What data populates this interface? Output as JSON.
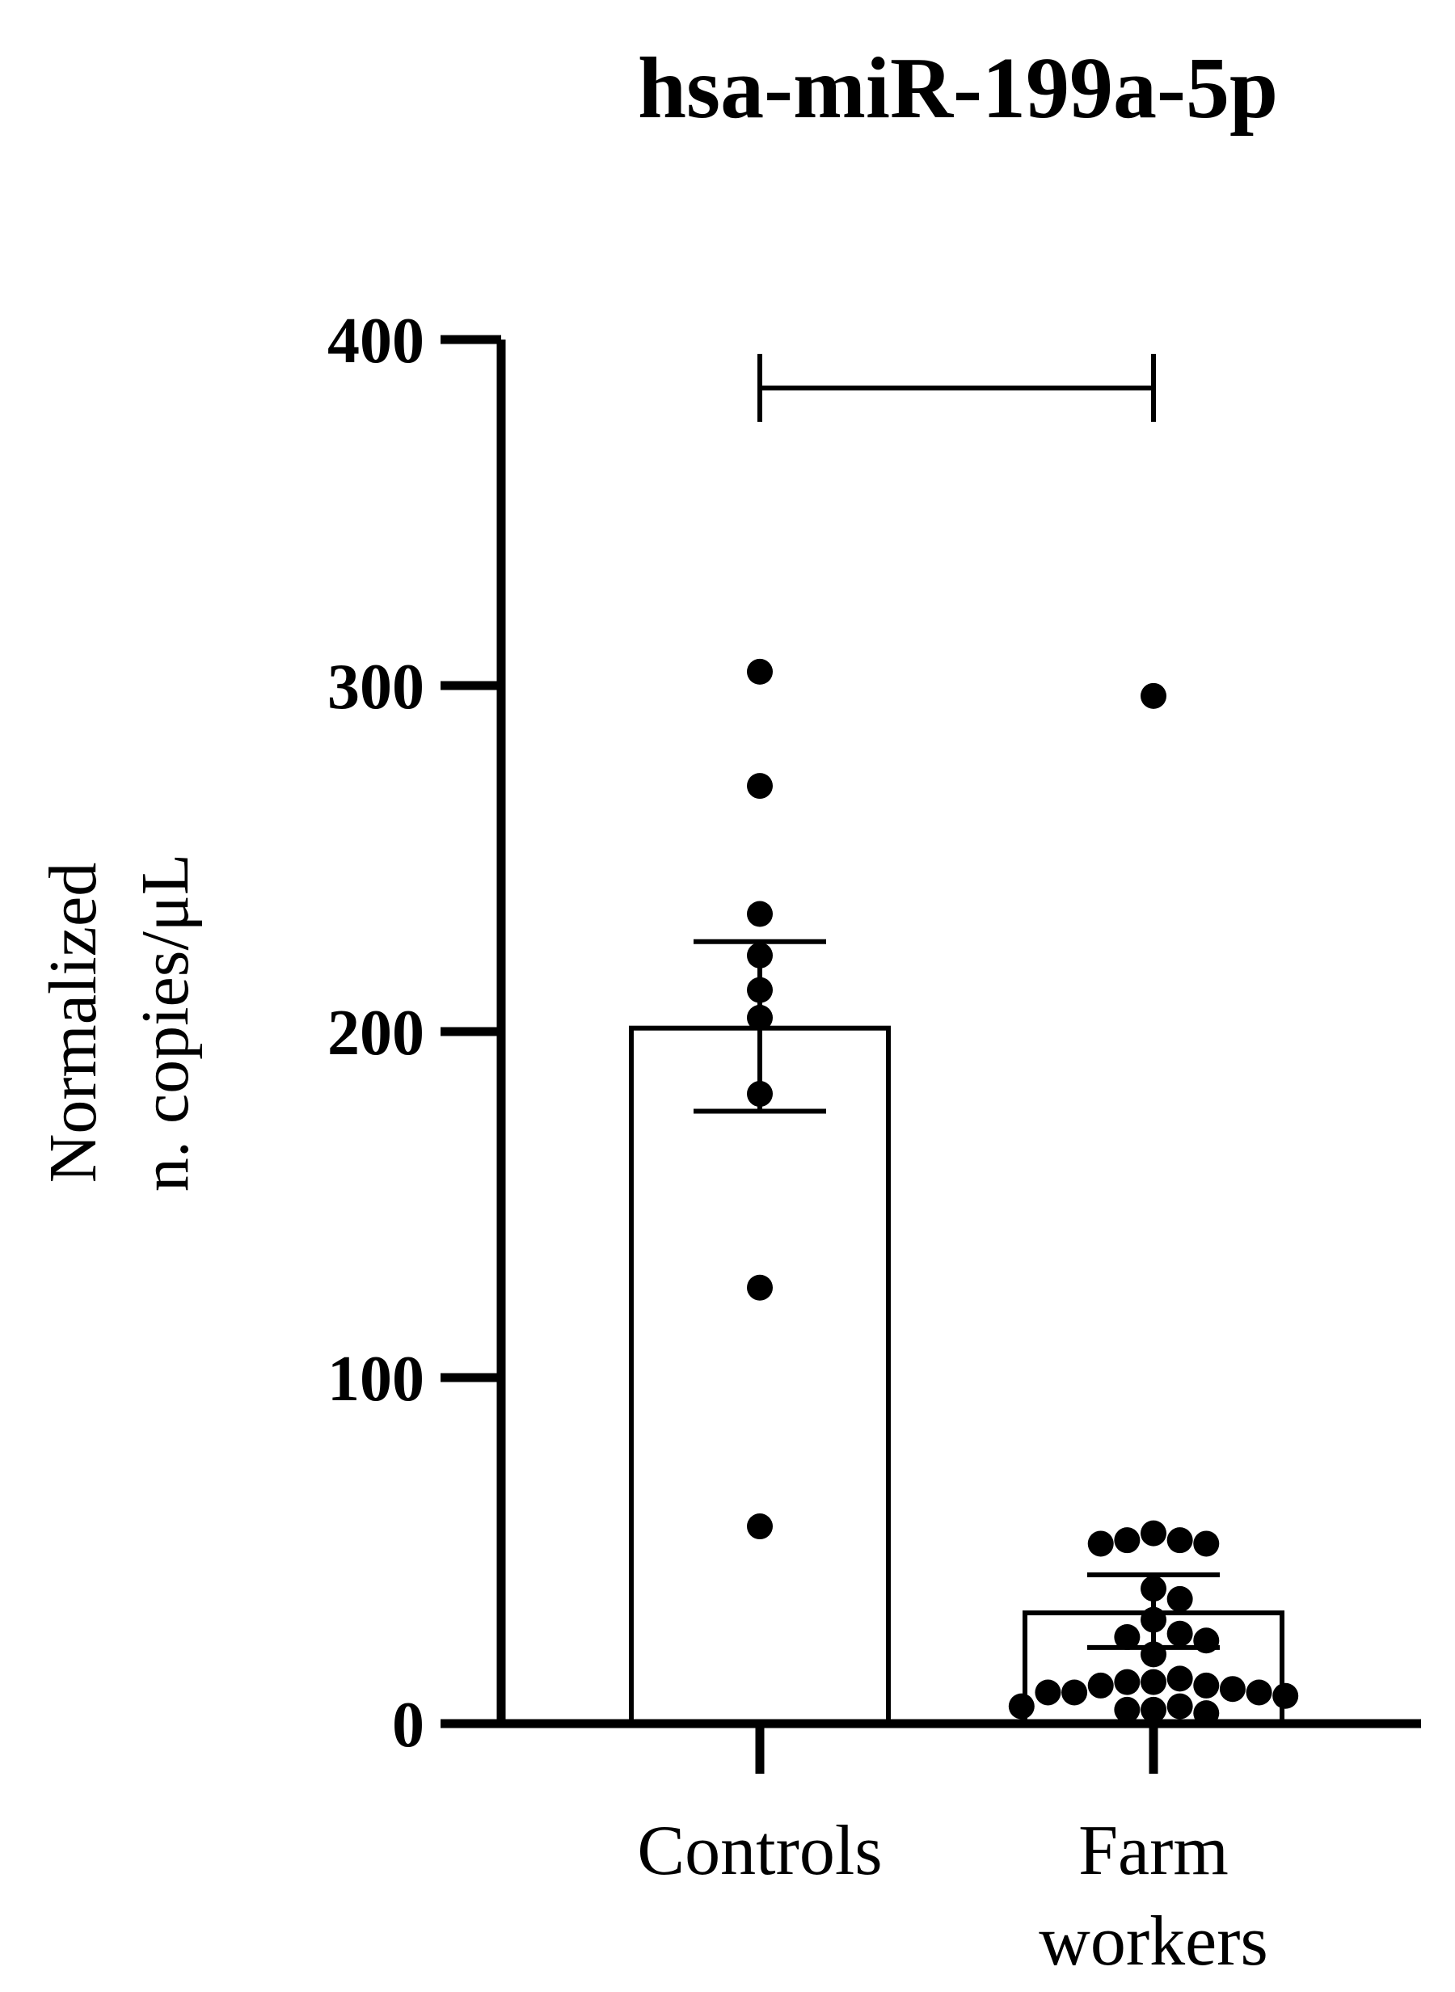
{
  "chart_data": {
    "type": "bar",
    "title": "hsa-miR-199a-5p",
    "ylabel_lines": [
      "Normalized",
      "n. copies/μL"
    ],
    "xlabel": "",
    "ylim": [
      0,
      400
    ],
    "yticks": [
      0,
      100,
      200,
      300,
      400
    ],
    "categories": [
      {
        "label_lines": [
          "Controls"
        ],
        "mean": 201,
        "error": [
          177,
          226
        ]
      },
      {
        "label_lines": [
          "Farm",
          "workers"
        ],
        "mean": 32,
        "error": [
          22,
          43
        ]
      }
    ],
    "points": [
      [
        304,
        271,
        234,
        222,
        212,
        204,
        182,
        126,
        57
      ],
      [
        297,
        55,
        53,
        53,
        52,
        52,
        39,
        36,
        30,
        26,
        25,
        24,
        20,
        13,
        12,
        12,
        11,
        11,
        10,
        9,
        9,
        9,
        8,
        5,
        5,
        4,
        4,
        3
      ]
    ],
    "significance_bracket": {
      "from": 0,
      "to": 1,
      "y": 386
    },
    "grid": false,
    "legend": "none",
    "colors": {
      "bar_fill": "#ffffff",
      "stroke": "#000000",
      "points": "#000000"
    }
  }
}
